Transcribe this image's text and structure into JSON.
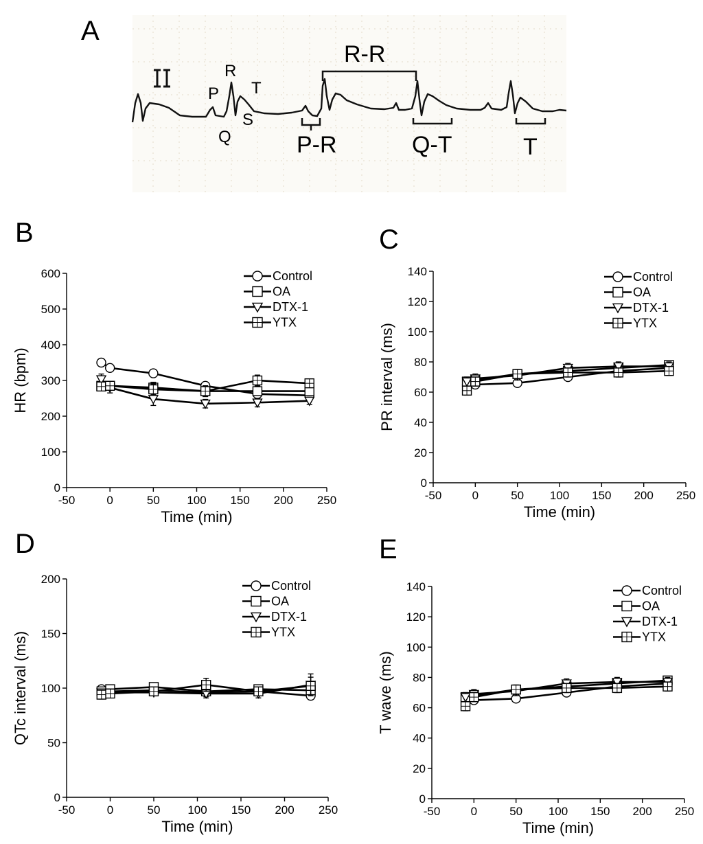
{
  "panel_a": {
    "letter": "A",
    "lead_label": "II",
    "wave_labels": {
      "p": "P",
      "q": "Q",
      "r": "R",
      "s": "S",
      "t": "T"
    },
    "interval_labels": {
      "rr": "R-R",
      "pr": "P-R",
      "qt": "Q-T",
      "t": "T"
    }
  },
  "legend": [
    "Control",
    "OA",
    "DTX-1",
    "YTX"
  ],
  "chart_data": [
    {
      "panel": "B",
      "type": "line",
      "xlabel": "Time (min)",
      "ylabel": "HR (bpm)",
      "xlim": [
        -50,
        250
      ],
      "ylim": [
        0,
        600
      ],
      "xticks": [
        -50,
        0,
        50,
        100,
        150,
        200,
        250
      ],
      "yticks": [
        0,
        100,
        200,
        300,
        400,
        500,
        600
      ],
      "series": [
        {
          "name": "Control",
          "marker": "circle",
          "points": [
            [
              -10,
              350
            ],
            [
              0,
              335
            ],
            [
              50,
              320
            ],
            [
              110,
              285
            ],
            [
              170,
              262
            ],
            [
              230,
              258
            ]
          ],
          "err": [
            8,
            8,
            8,
            8,
            8,
            8
          ]
        },
        {
          "name": "OA",
          "marker": "square",
          "points": [
            [
              -10,
              285
            ],
            [
              0,
              285
            ],
            [
              50,
              280
            ],
            [
              110,
              270
            ],
            [
              170,
              270
            ],
            [
              230,
              270
            ]
          ],
          "err": [
            12,
            12,
            15,
            15,
            12,
            12
          ]
        },
        {
          "name": "DTX-1",
          "marker": "triangle",
          "points": [
            [
              -10,
              303
            ],
            [
              0,
              280
            ],
            [
              50,
              248
            ],
            [
              110,
              235
            ],
            [
              170,
              238
            ],
            [
              230,
              243
            ]
          ],
          "err": [
            15,
            15,
            18,
            12,
            12,
            10
          ]
        },
        {
          "name": "YTX",
          "marker": "grid",
          "points": [
            [
              -10,
              283
            ],
            [
              0,
              285
            ],
            [
              50,
              275
            ],
            [
              110,
              270
            ],
            [
              170,
              300
            ],
            [
              230,
              292
            ]
          ],
          "err": [
            12,
            12,
            15,
            15,
            15,
            12
          ]
        }
      ]
    },
    {
      "panel": "C",
      "type": "line",
      "xlabel": "Time (min)",
      "ylabel": "PR interval (ms)",
      "xlim": [
        -50,
        250
      ],
      "ylim": [
        0,
        140
      ],
      "xticks": [
        -50,
        0,
        50,
        100,
        150,
        200,
        250
      ],
      "yticks": [
        0,
        20,
        40,
        60,
        80,
        100,
        120,
        140
      ],
      "series": [
        {
          "name": "Control",
          "marker": "circle",
          "points": [
            [
              -10,
              65
            ],
            [
              0,
              65
            ],
            [
              50,
              66
            ],
            [
              110,
              70
            ],
            [
              170,
              74
            ],
            [
              230,
              76
            ]
          ],
          "err": [
            2,
            2,
            2,
            2,
            2,
            2
          ]
        },
        {
          "name": "OA",
          "marker": "square",
          "points": [
            [
              -10,
              67
            ],
            [
              0,
              68
            ],
            [
              50,
              72
            ],
            [
              110,
              74
            ],
            [
              170,
              76
            ],
            [
              230,
              78
            ]
          ],
          "err": [
            2,
            2,
            2,
            2,
            2,
            2
          ]
        },
        {
          "name": "DTX-1",
          "marker": "triangle",
          "points": [
            [
              -10,
              67
            ],
            [
              0,
              69
            ],
            [
              50,
              71
            ],
            [
              110,
              76
            ],
            [
              170,
              77
            ],
            [
              230,
              77
            ]
          ],
          "err": [
            3,
            3,
            3,
            3,
            3,
            3
          ]
        },
        {
          "name": "YTX",
          "marker": "grid",
          "points": [
            [
              -10,
              61
            ],
            [
              0,
              67
            ],
            [
              50,
              72
            ],
            [
              110,
              73
            ],
            [
              170,
              73
            ],
            [
              230,
              74
            ]
          ],
          "err": [
            3,
            3,
            3,
            3,
            3,
            3
          ]
        }
      ]
    },
    {
      "panel": "D",
      "type": "line",
      "xlabel": "Time (min)",
      "ylabel": "QTc interval (ms)",
      "xlim": [
        -50,
        250
      ],
      "ylim": [
        0,
        200
      ],
      "xticks": [
        -50,
        0,
        50,
        100,
        150,
        200,
        250
      ],
      "yticks": [
        0,
        50,
        100,
        150,
        200
      ],
      "series": [
        {
          "name": "Control",
          "marker": "circle",
          "points": [
            [
              -10,
              99
            ],
            [
              0,
              97
            ],
            [
              50,
              98
            ],
            [
              110,
              96
            ],
            [
              170,
              97
            ],
            [
              230,
              93
            ]
          ],
          "err": [
            2,
            2,
            2,
            2,
            2,
            2
          ]
        },
        {
          "name": "OA",
          "marker": "square",
          "points": [
            [
              -10,
              97
            ],
            [
              0,
              99
            ],
            [
              50,
              101
            ],
            [
              110,
              97
            ],
            [
              170,
              99
            ],
            [
              230,
              98
            ]
          ],
          "err": [
            3,
            3,
            3,
            3,
            3,
            3
          ]
        },
        {
          "name": "DTX-1",
          "marker": "triangle",
          "points": [
            [
              -10,
              96
            ],
            [
              0,
              96
            ],
            [
              50,
              96
            ],
            [
              110,
              95
            ],
            [
              170,
              95
            ],
            [
              230,
              103
            ]
          ],
          "err": [
            3,
            3,
            3,
            4,
            4,
            10
          ]
        },
        {
          "name": "YTX",
          "marker": "grid",
          "points": [
            [
              -10,
              94
            ],
            [
              0,
              95
            ],
            [
              50,
              97
            ],
            [
              110,
              103
            ],
            [
              170,
              97
            ],
            [
              230,
              102
            ]
          ],
          "err": [
            4,
            4,
            4,
            6,
            4,
            8
          ]
        }
      ]
    },
    {
      "panel": "E",
      "type": "line",
      "xlabel": "Time (min)",
      "ylabel": "T wave (ms)",
      "xlim": [
        -50,
        250
      ],
      "ylim": [
        0,
        140
      ],
      "xticks": [
        -50,
        0,
        50,
        100,
        150,
        200,
        250
      ],
      "yticks": [
        0,
        20,
        40,
        60,
        80,
        100,
        120,
        140
      ],
      "series": [
        {
          "name": "Control",
          "marker": "circle",
          "points": [
            [
              -10,
              65
            ],
            [
              0,
              65
            ],
            [
              50,
              66
            ],
            [
              110,
              70
            ],
            [
              170,
              74
            ],
            [
              230,
              76
            ]
          ],
          "err": [
            2,
            2,
            2,
            2,
            2,
            2
          ]
        },
        {
          "name": "OA",
          "marker": "square",
          "points": [
            [
              -10,
              67
            ],
            [
              0,
              68
            ],
            [
              50,
              72
            ],
            [
              110,
              74
            ],
            [
              170,
              76
            ],
            [
              230,
              78
            ]
          ],
          "err": [
            2,
            2,
            2,
            2,
            2,
            2
          ]
        },
        {
          "name": "DTX-1",
          "marker": "triangle",
          "points": [
            [
              -10,
              67
            ],
            [
              0,
              69
            ],
            [
              50,
              71
            ],
            [
              110,
              76
            ],
            [
              170,
              77
            ],
            [
              230,
              77
            ]
          ],
          "err": [
            3,
            3,
            3,
            3,
            3,
            3
          ]
        },
        {
          "name": "YTX",
          "marker": "grid",
          "points": [
            [
              -10,
              61
            ],
            [
              0,
              67
            ],
            [
              50,
              72
            ],
            [
              110,
              73
            ],
            [
              170,
              73
            ],
            [
              230,
              74
            ]
          ],
          "err": [
            3,
            3,
            3,
            3,
            3,
            3
          ]
        }
      ]
    }
  ]
}
